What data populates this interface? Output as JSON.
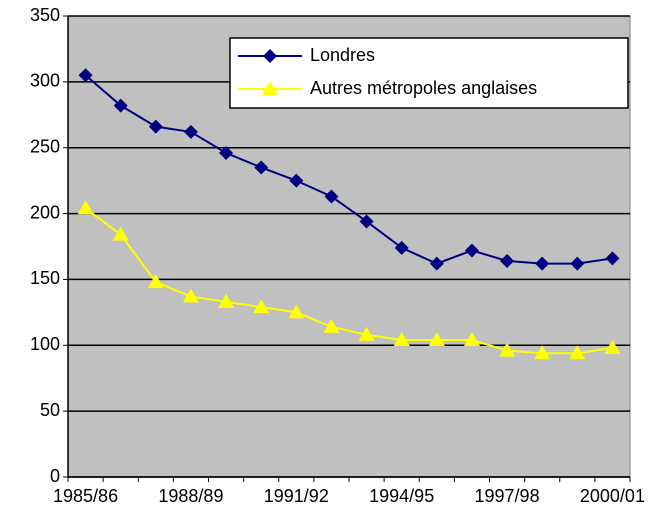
{
  "chart_data": {
    "type": "line",
    "categories": [
      "1985/86",
      null,
      null,
      "1988/89",
      null,
      null,
      "1991/92",
      null,
      null,
      "1994/95",
      null,
      null,
      "1997/98",
      null,
      null,
      "2000/01"
    ],
    "series": [
      {
        "name": "Londres",
        "color": "#000080",
        "marker": "diamond",
        "values": [
          305,
          282,
          266,
          262,
          246,
          235,
          225,
          213,
          194,
          174,
          162,
          172,
          164,
          162,
          162,
          166
        ]
      },
      {
        "name": "Autres métropoles anglaises",
        "color": "#ffff00",
        "marker": "triangle",
        "values": [
          204,
          184,
          148,
          137,
          133,
          129,
          125,
          114,
          108,
          104,
          104,
          104,
          96,
          94,
          94,
          98
        ]
      }
    ],
    "ylim": [
      0,
      350
    ],
    "yticks": [
      0,
      50,
      100,
      150,
      200,
      250,
      300,
      350
    ],
    "grid": true,
    "background": "#c0c0c0",
    "legend": "upper right"
  }
}
